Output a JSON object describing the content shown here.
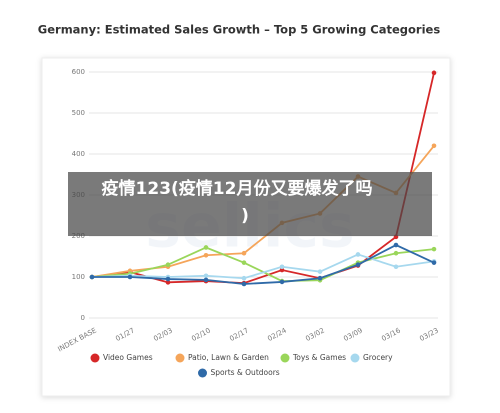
{
  "chart_data": {
    "type": "line",
    "title": "Germany: Estimated Sales Growth – Top 5 Growing Categories",
    "watermark": "sellics",
    "overlay_text": [
      "疫情123(疫情12月份又要爆发了吗",
      ")"
    ],
    "categories": [
      "INDEX BASE",
      "01/27",
      "02/03",
      "02/10",
      "02/17",
      "02/24",
      "03/02",
      "03/09",
      "03/16",
      "03/23"
    ],
    "ylim": [
      0,
      600
    ],
    "yticks": [
      0,
      100,
      200,
      300,
      400,
      500,
      600
    ],
    "grid": true,
    "series": [
      {
        "name": "Video Games",
        "color": "#d62728",
        "values": [
          100,
          112,
          87,
          90,
          85,
          117,
          97,
          128,
          198,
          598
        ]
      },
      {
        "name": "Patio, Lawn & Garden",
        "color": "#f5a55a",
        "values": [
          100,
          115,
          125,
          153,
          158,
          232,
          255,
          345,
          305,
          420
        ]
      },
      {
        "name": "Toys & Games",
        "color": "#9ad65a",
        "values": [
          100,
          108,
          130,
          172,
          135,
          90,
          92,
          135,
          158,
          168
        ]
      },
      {
        "name": "Grocery",
        "color": "#a6d8ee",
        "values": [
          100,
          103,
          100,
          103,
          97,
          125,
          113,
          155,
          125,
          138
        ]
      },
      {
        "name": "Sports & Outdoors",
        "color": "#2f6aa8",
        "values": [
          100,
          100,
          95,
          93,
          83,
          88,
          97,
          130,
          178,
          135
        ]
      }
    ]
  }
}
